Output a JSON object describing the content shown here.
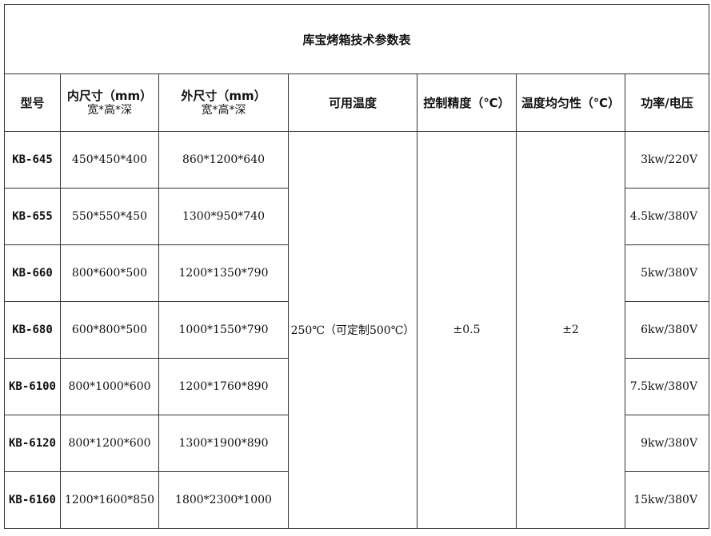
{
  "title": "库宝烤箱技术参数表",
  "headers": {
    "model": "型号",
    "inner_main": "内尺寸（mm）",
    "inner_sub": "宽*高*深",
    "outer_main": "外尺寸（mm）",
    "outer_sub": "宽*高*深",
    "temp": "可用温度",
    "precision": "控制精度（℃）",
    "uniformity": "温度均匀性（℃）",
    "power": "功率/电压"
  },
  "shared": {
    "temp": "250℃（可定制500℃）",
    "precision": "±0.5",
    "uniformity": "±2"
  },
  "rows": [
    {
      "model": "KB-645",
      "inner": "450*450*400",
      "outer": "860*1200*640",
      "power": "3kw/220V"
    },
    {
      "model": "KB-655",
      "inner": "550*550*450",
      "outer": "1300*950*740",
      "power": "4.5kw/380V"
    },
    {
      "model": "KB-660",
      "inner": "800*600*500",
      "outer": "1200*1350*790",
      "power": "5kw/380V"
    },
    {
      "model": "KB-680",
      "inner": "600*800*500",
      "outer": "1000*1550*790",
      "power": "6kw/380V"
    },
    {
      "model": "KB-6100",
      "inner": "800*1000*600",
      "outer": "1200*1760*890",
      "power": "7.5kw/380V"
    },
    {
      "model": "KB-6120",
      "inner": "800*1200*600",
      "outer": "1300*1900*890",
      "power": "9kw/380V"
    },
    {
      "model": "KB-6160",
      "inner": "1200*1600*850",
      "outer": "1800*2300*1000",
      "power": "15kw/380V"
    }
  ]
}
